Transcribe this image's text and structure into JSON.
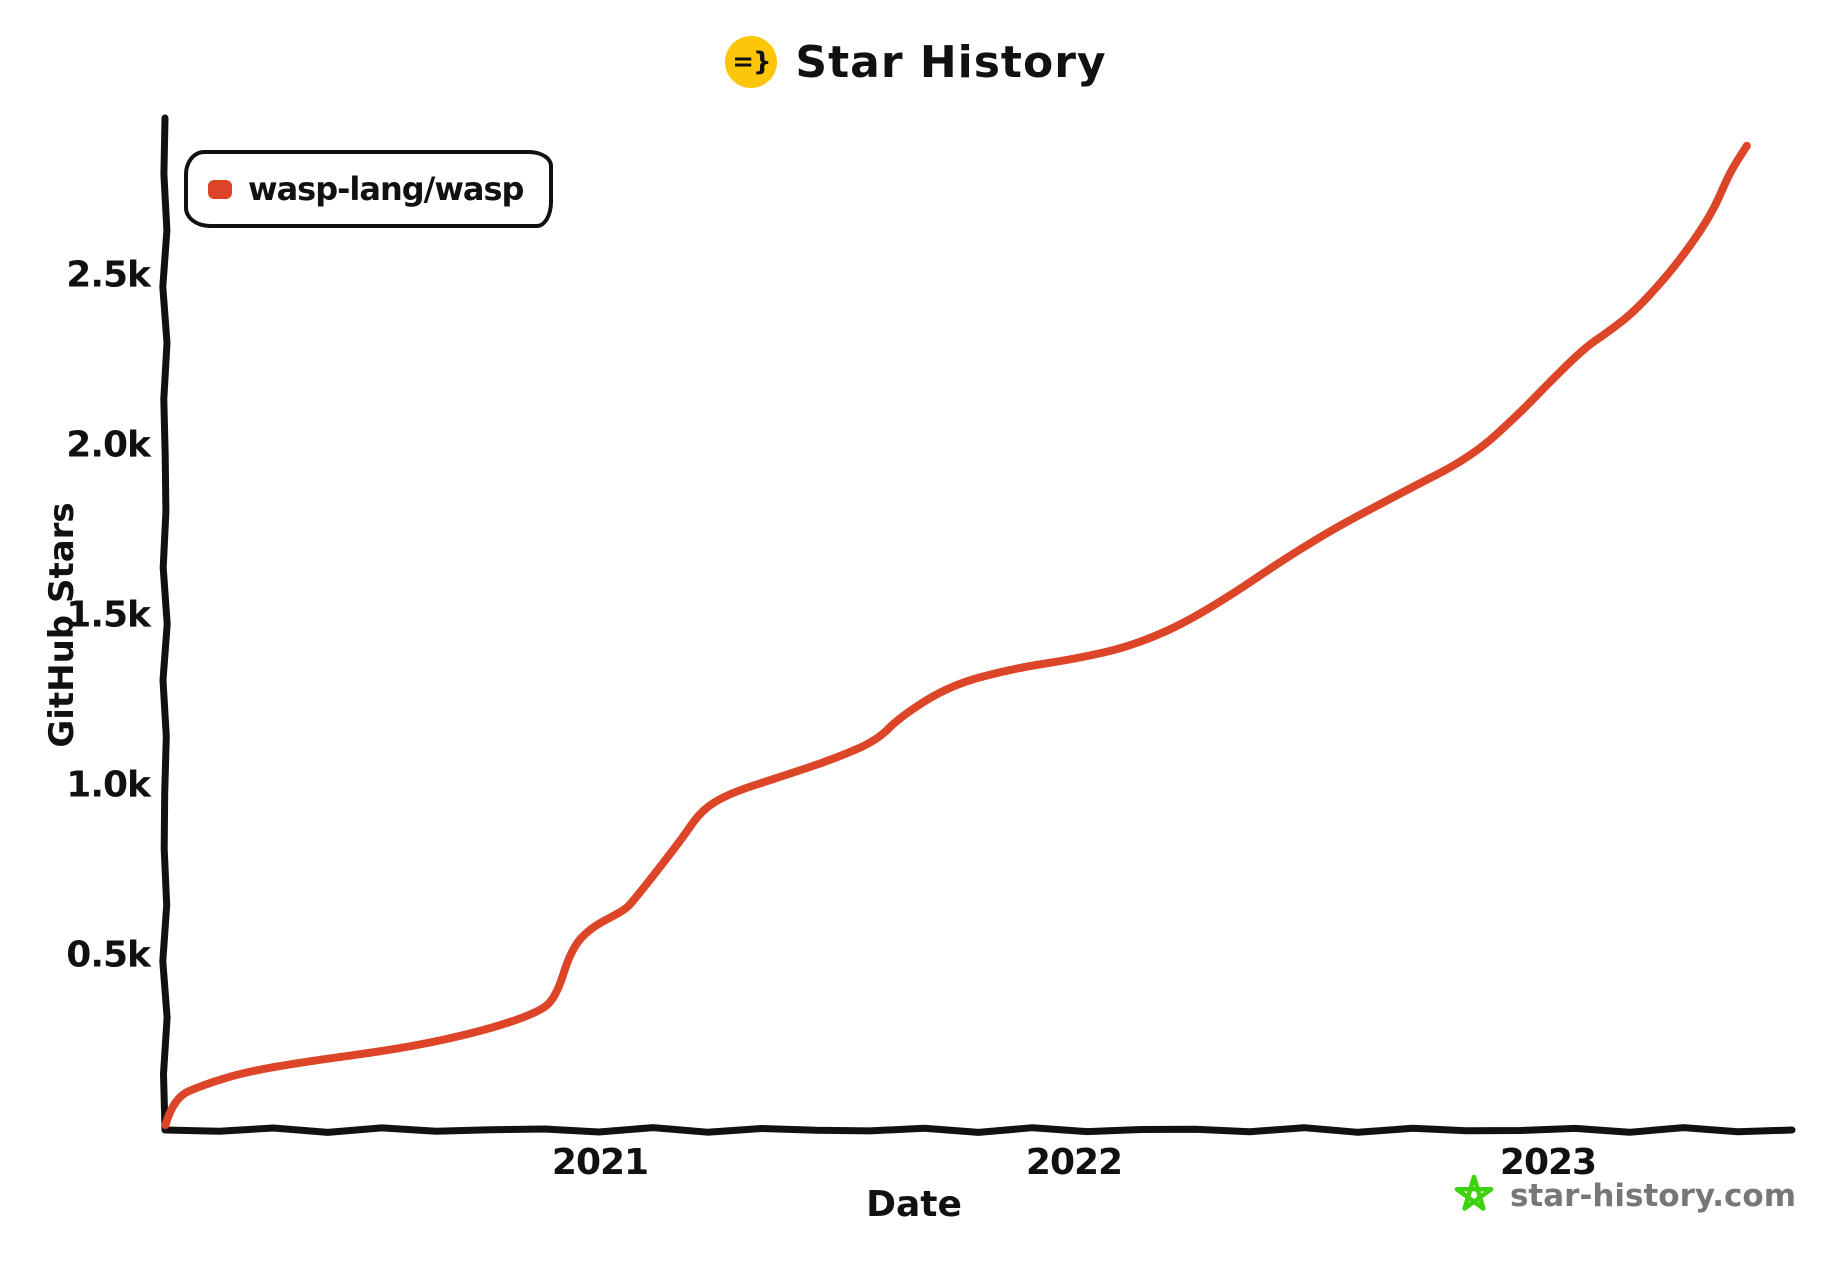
{
  "header": {
    "title": "Star History",
    "logo_text": "=}"
  },
  "legend": {
    "series_label": "wasp-lang/wasp"
  },
  "axes": {
    "y_label": "GitHub Stars",
    "x_label": "Date"
  },
  "watermark": {
    "text": "star-history.com"
  },
  "colors": {
    "series_red": "#dd4528",
    "axis_black": "#111111",
    "logo_yellow": "#fdc608",
    "watermark_green": "#3dd20d",
    "watermark_gray": "#777777"
  },
  "chart_data": {
    "type": "line",
    "title": "Star History",
    "xlabel": "Date",
    "ylabel": "GitHub Stars",
    "grid": false,
    "legend_position": "top-left",
    "xlim": [
      "2020-01-30",
      "2023-07-01"
    ],
    "ylim": [
      0,
      2950
    ],
    "x_ticks": [
      {
        "label": "2021"
      },
      {
        "label": "2022"
      },
      {
        "label": "2023"
      }
    ],
    "y_ticks": [
      {
        "label": "0.5k",
        "value": 500
      },
      {
        "label": "1.0k",
        "value": 1000
      },
      {
        "label": "1.5k",
        "value": 1500
      },
      {
        "label": "2.0k",
        "value": 2000
      },
      {
        "label": "2.5k",
        "value": 2500
      }
    ],
    "series": [
      {
        "name": "wasp-lang/wasp",
        "color": "#dd4528",
        "points": [
          [
            "2020-02-01",
            0
          ],
          [
            "2020-02-07",
            80
          ],
          [
            "2020-03-01",
            120
          ],
          [
            "2020-04-01",
            155
          ],
          [
            "2020-05-15",
            185
          ],
          [
            "2020-08-01",
            225
          ],
          [
            "2020-10-01",
            275
          ],
          [
            "2020-11-14",
            330
          ],
          [
            "2020-11-28",
            375
          ],
          [
            "2020-12-09",
            515
          ],
          [
            "2020-12-24",
            580
          ],
          [
            "2021-01-19",
            630
          ],
          [
            "2021-01-26",
            655
          ],
          [
            "2021-03-03",
            840
          ],
          [
            "2021-03-18",
            925
          ],
          [
            "2021-04-09",
            975
          ],
          [
            "2021-05-19",
            1025
          ],
          [
            "2021-06-28",
            1075
          ],
          [
            "2021-08-01",
            1130
          ],
          [
            "2021-08-19",
            1200
          ],
          [
            "2021-09-28",
            1295
          ],
          [
            "2021-11-18",
            1345
          ],
          [
            "2022-01-01",
            1370
          ],
          [
            "2022-02-17",
            1410
          ],
          [
            "2022-04-08",
            1500
          ],
          [
            "2022-07-02",
            1720
          ],
          [
            "2022-09-10",
            1860
          ],
          [
            "2022-11-03",
            1965
          ],
          [
            "2022-12-10",
            2095
          ],
          [
            "2023-01-01",
            2180
          ],
          [
            "2023-01-29",
            2285
          ],
          [
            "2023-02-16",
            2330
          ],
          [
            "2023-03-06",
            2390
          ],
          [
            "2023-04-01",
            2495
          ],
          [
            "2023-04-23",
            2605
          ],
          [
            "2023-05-08",
            2700
          ],
          [
            "2023-05-19",
            2800
          ],
          [
            "2023-06-02",
            2880
          ]
        ]
      }
    ]
  }
}
